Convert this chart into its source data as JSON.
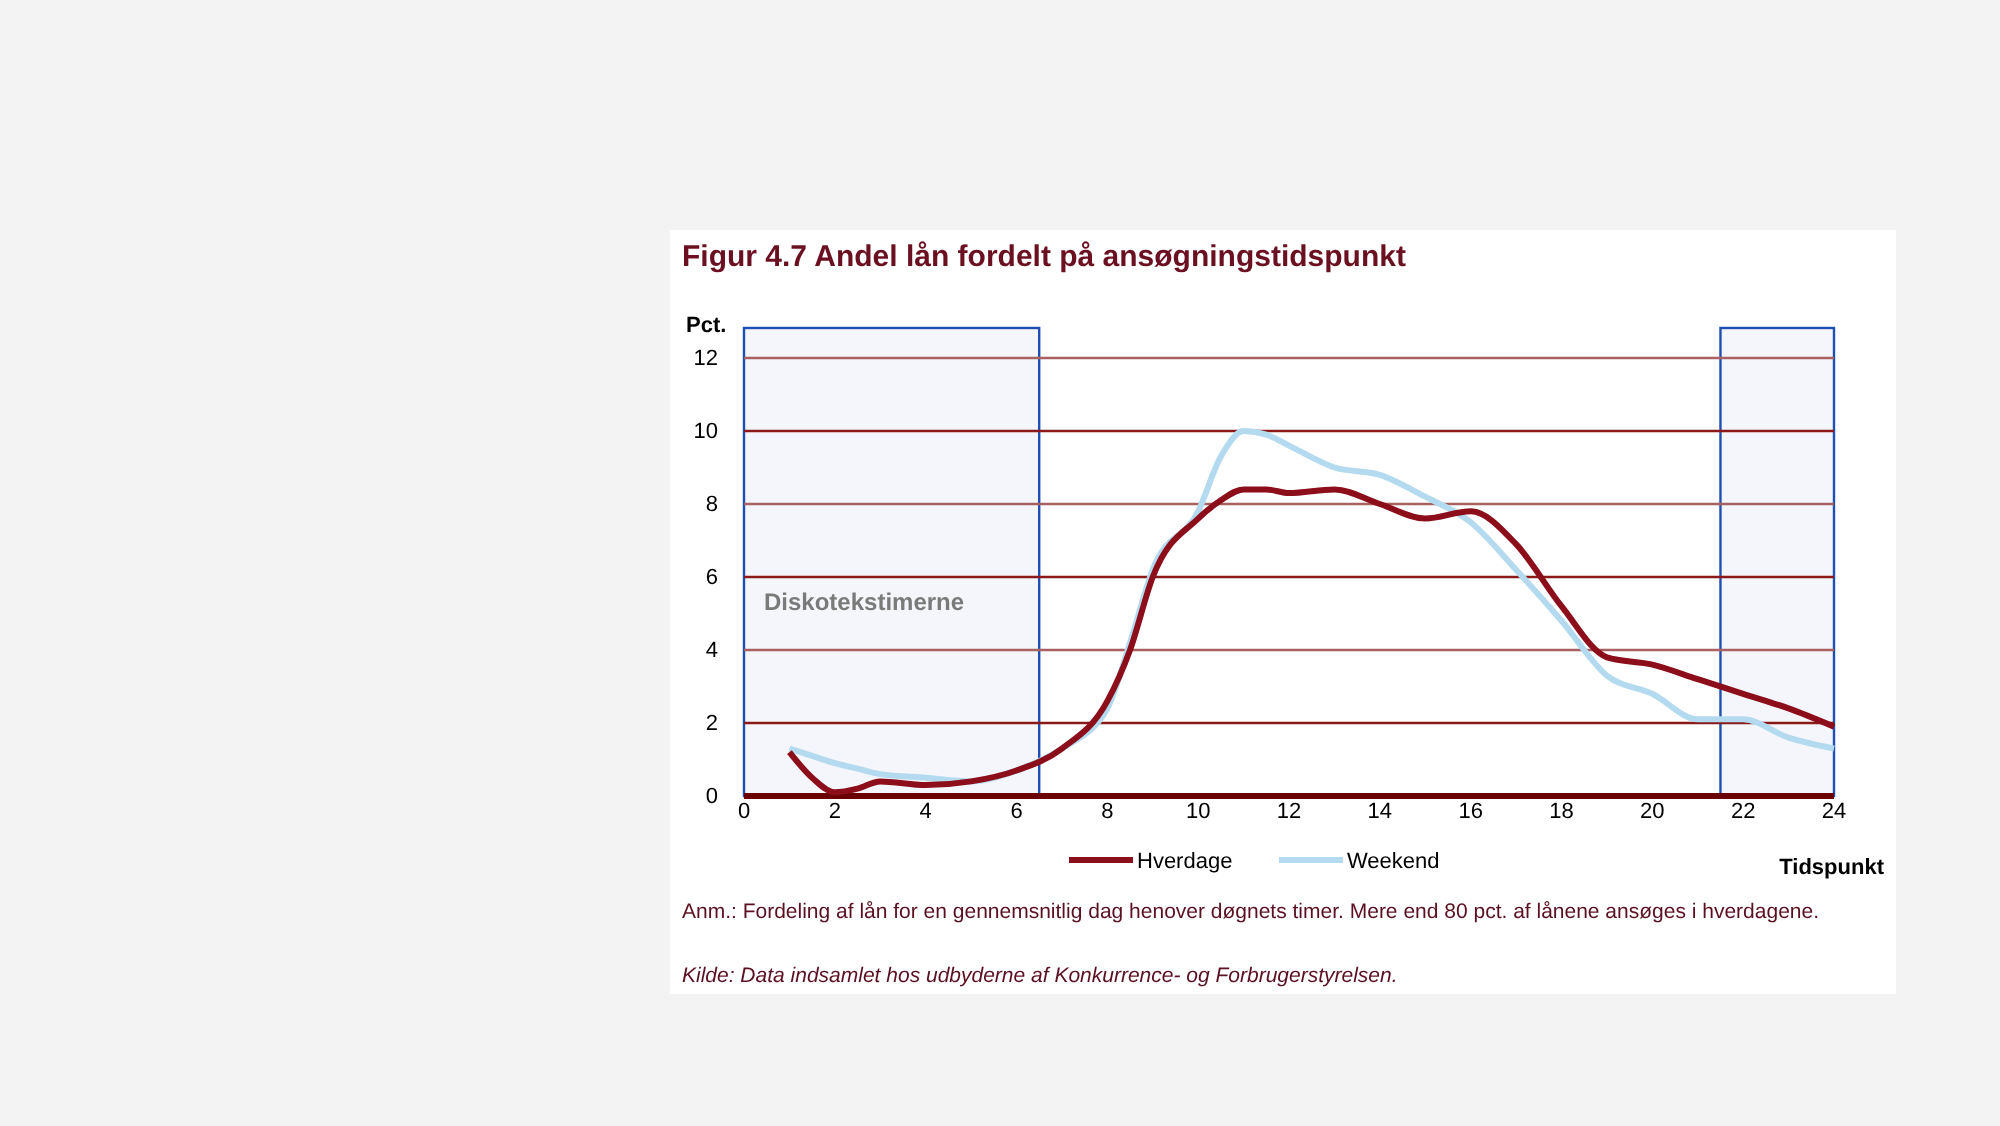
{
  "chart_data": {
    "type": "line",
    "title": "Figur 4.7 Andel lån fordelt på ansøgningstidspunkt",
    "ylabel": "Pct.",
    "xlabel": "Tidspunkt",
    "x": [
      1,
      1.5,
      2,
      2.5,
      3,
      4,
      5,
      6,
      7,
      8,
      8.5,
      9,
      10,
      10.5,
      11,
      11.5,
      12,
      13,
      14,
      15,
      16,
      17,
      18,
      19,
      20,
      21,
      22,
      23,
      24
    ],
    "series": [
      {
        "name": "Hverdage",
        "color": "#8b0e1a",
        "values": [
          1.2,
          0.5,
          0.1,
          0.2,
          0.4,
          0.3,
          0.4,
          0.7,
          1.3,
          2.6,
          4.0,
          6.0,
          7.6,
          8.1,
          8.4,
          8.4,
          8.3,
          8.4,
          8.0,
          7.6,
          7.8,
          6.9,
          5.2,
          3.8,
          3.6,
          3.2,
          2.8,
          2.4,
          1.9
        ]
      },
      {
        "name": "Weekend",
        "color": "#b4daf0",
        "values": [
          1.3,
          1.1,
          0.9,
          0.75,
          0.6,
          0.5,
          0.4,
          0.7,
          1.3,
          2.4,
          4.2,
          6.2,
          7.8,
          9.3,
          10.0,
          9.9,
          9.6,
          9.0,
          8.8,
          8.2,
          7.5,
          6.2,
          4.8,
          3.3,
          2.8,
          2.1,
          2.1,
          1.6,
          1.3
        ]
      }
    ],
    "xlim": [
      0,
      24
    ],
    "xticks": [
      0,
      2,
      4,
      6,
      8,
      10,
      12,
      14,
      16,
      18,
      20,
      22,
      24
    ],
    "ylim": [
      0,
      12
    ],
    "yticks": [
      0,
      2,
      4,
      6,
      8,
      10,
      12
    ],
    "grid": "y",
    "legend": "bottom",
    "marker": "none",
    "line_style": "solid",
    "bands": [
      {
        "axis": "x",
        "from": 0,
        "to": 6.5,
        "label": "Diskotekstimerne",
        "color": "#1f4eb4"
      },
      {
        "axis": "x",
        "from": 21.5,
        "to": 24,
        "color": "#1f4eb4"
      }
    ],
    "annotations": [
      "Anm.: Fordeling af lån for en gennemsnitlig dag henover døgnets timer. Mere end 80 pct. af lånene ansøges i hverdagene.",
      "Kilde: Data indsamlet hos udbyderne af Konkurrence- og Forbrugerstyrelsen."
    ]
  }
}
